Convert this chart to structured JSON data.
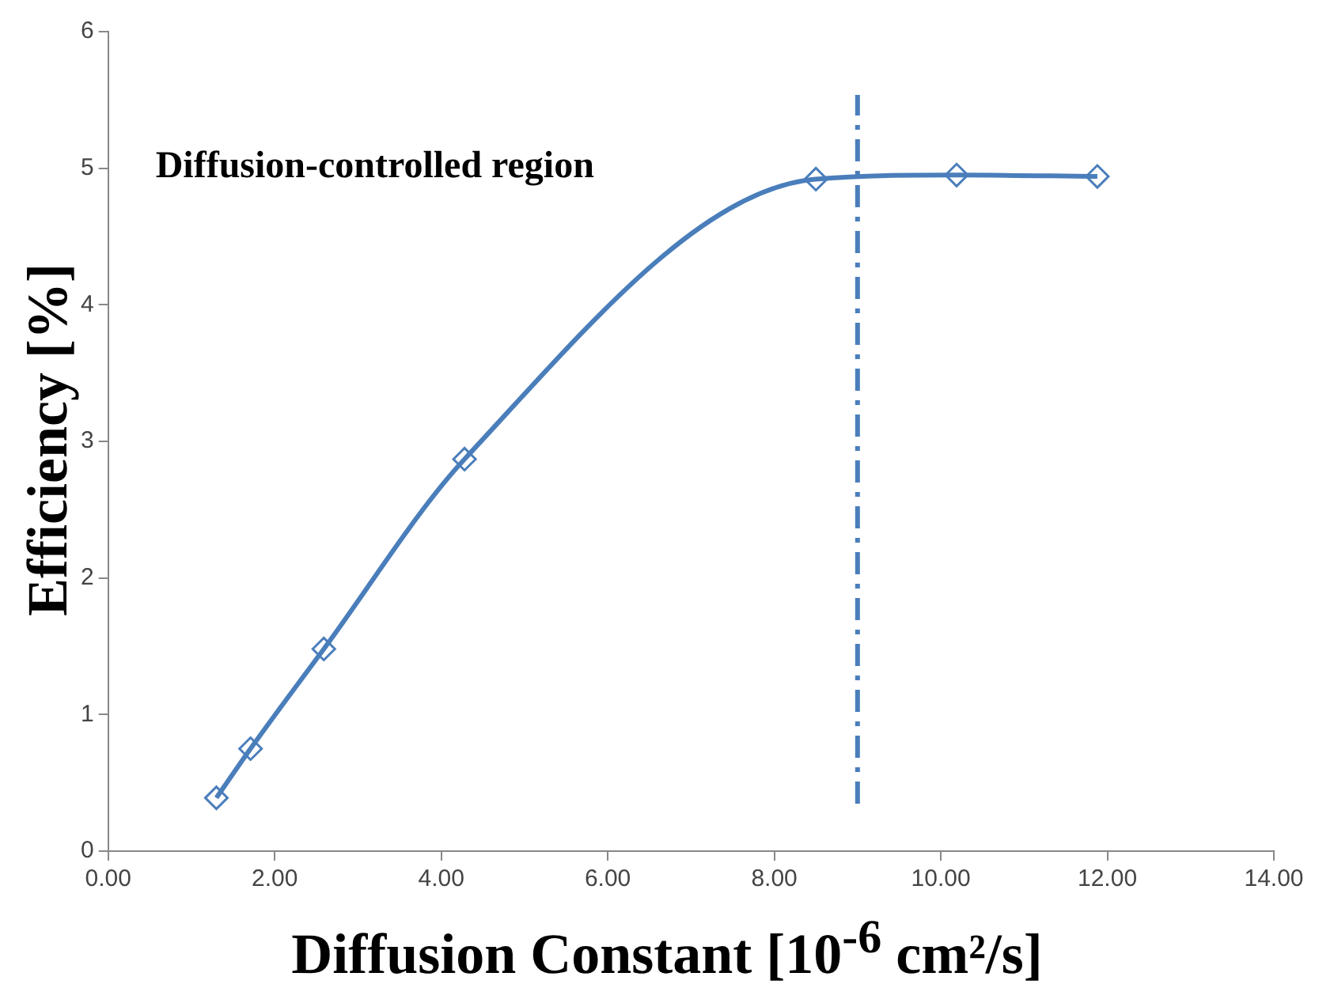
{
  "chart_data": {
    "type": "line",
    "xlabel": "Diffusion Constant [10$^{-6}$ cm²/s]",
    "ylabel": "Efficiency [%]",
    "annotations": [
      "Diffusion-controlled region"
    ],
    "series": [
      {
        "color": "#4a7ebb",
        "x": [
          1.3,
          1.71,
          2.59,
          4.28,
          8.5,
          10.19,
          11.88
        ],
        "values": [
          0.39,
          0.75,
          1.48,
          2.87,
          4.92,
          4.95,
          4.94
        ]
      }
    ],
    "xlim": [
      0,
      14
    ],
    "xticks": [
      {
        "value": 0,
        "label": "0.00"
      },
      {
        "value": 2,
        "label": "2.00"
      },
      {
        "value": 4,
        "label": "4.00"
      },
      {
        "value": 6,
        "label": "6.00"
      },
      {
        "value": 8,
        "label": "8.00"
      },
      {
        "value": 10,
        "label": "10.00"
      },
      {
        "value": 12,
        "label": "12.00"
      },
      {
        "value": 14,
        "label": "14.00"
      }
    ],
    "ylim": [
      0,
      6
    ],
    "yticks": [
      0,
      1,
      2,
      3,
      4,
      5,
      6
    ],
    "ref_lines": [
      {
        "axis": "x",
        "value": 9,
        "color": "#4a7ebb",
        "line_style": "dashed"
      }
    ],
    "grid": false,
    "legend": false,
    "marker": "diamond",
    "line_style": "solid"
  }
}
